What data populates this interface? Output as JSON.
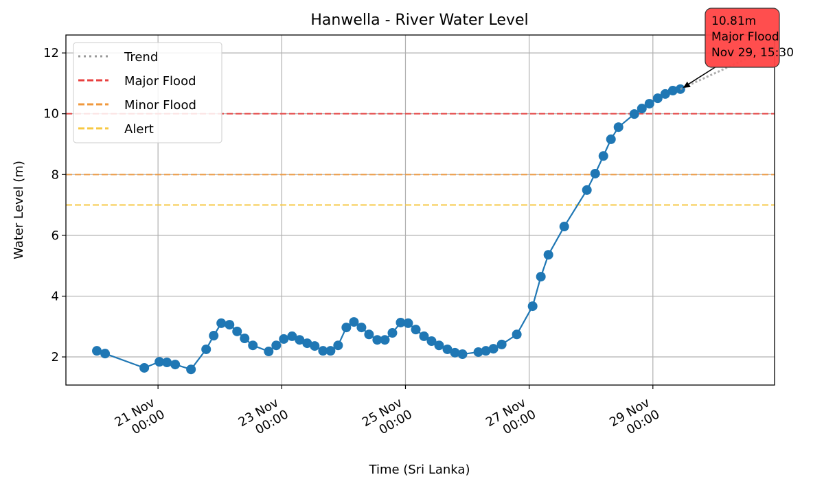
{
  "chart_data": {
    "type": "line",
    "title": "Hanwella - River Water Level",
    "x_label": "Time (Sri Lanka)",
    "y_label": "Water Level (m)",
    "xlim": [
      19.511,
      30.967
    ],
    "ylim": [
      1.075,
      12.59
    ],
    "xticks": [
      {
        "value": 21,
        "label": [
          "21 Nov",
          "00:00"
        ]
      },
      {
        "value": 23,
        "label": [
          "23 Nov",
          "00:00"
        ]
      },
      {
        "value": 25,
        "label": [
          "25 Nov",
          "00:00"
        ]
      },
      {
        "value": 27,
        "label": [
          "27 Nov",
          "00:00"
        ]
      },
      {
        "value": 29,
        "label": [
          "29 Nov",
          "00:00"
        ]
      }
    ],
    "yticks": [
      2,
      4,
      6,
      8,
      10,
      12
    ],
    "grid": true,
    "legend_position": "upper-left",
    "series": [
      {
        "color": "#1f77b4",
        "x": [
          20.011,
          20.144,
          20.778,
          21.022,
          21.144,
          21.278,
          21.533,
          21.778,
          21.9,
          22.022,
          22.156,
          22.278,
          22.4,
          22.533,
          22.789,
          22.911,
          23.033,
          23.167,
          23.289,
          23.411,
          23.533,
          23.667,
          23.789,
          23.911,
          24.044,
          24.167,
          24.289,
          24.411,
          24.544,
          24.667,
          24.789,
          24.922,
          25.044,
          25.167,
          25.3,
          25.422,
          25.544,
          25.678,
          25.8,
          25.922,
          26.178,
          26.3,
          26.422,
          26.556,
          26.8,
          27.056,
          27.189,
          27.311,
          27.567,
          27.933,
          28.067,
          28.2,
          28.322,
          28.444,
          28.7,
          28.822,
          28.944,
          29.078,
          29.2,
          29.322,
          29.444
        ],
        "values": [
          2.2,
          2.11,
          1.64,
          1.84,
          1.82,
          1.75,
          1.59,
          2.25,
          2.7,
          3.11,
          3.06,
          2.84,
          2.61,
          2.38,
          2.18,
          2.38,
          2.59,
          2.68,
          2.56,
          2.45,
          2.36,
          2.2,
          2.2,
          2.38,
          2.97,
          3.15,
          2.97,
          2.74,
          2.56,
          2.56,
          2.79,
          3.13,
          3.11,
          2.9,
          2.68,
          2.52,
          2.38,
          2.25,
          2.14,
          2.09,
          2.16,
          2.2,
          2.27,
          2.41,
          2.74,
          3.67,
          4.64,
          5.36,
          6.29,
          7.49,
          8.03,
          8.61,
          9.16,
          9.56,
          9.99,
          10.17,
          10.33,
          10.51,
          10.65,
          10.76,
          10.81
        ]
      },
      {
        "name": "Trend",
        "color": "#999999",
        "style": "dotted",
        "x": [
          29.444,
          30.5
        ],
        "values": [
          10.81,
          11.8
        ]
      }
    ],
    "thresholds": [
      {
        "name": "Major Flood",
        "value": 10,
        "color": "#e8403f"
      },
      {
        "name": "Minor Flood",
        "value": 8,
        "color": "#f0983d"
      },
      {
        "name": "Alert",
        "value": 7,
        "color": "#f7c843"
      }
    ],
    "annotation": {
      "lines": [
        "10.81m",
        "Major Flood",
        "Nov 29, 15:30"
      ],
      "color": "#ff4444"
    }
  }
}
